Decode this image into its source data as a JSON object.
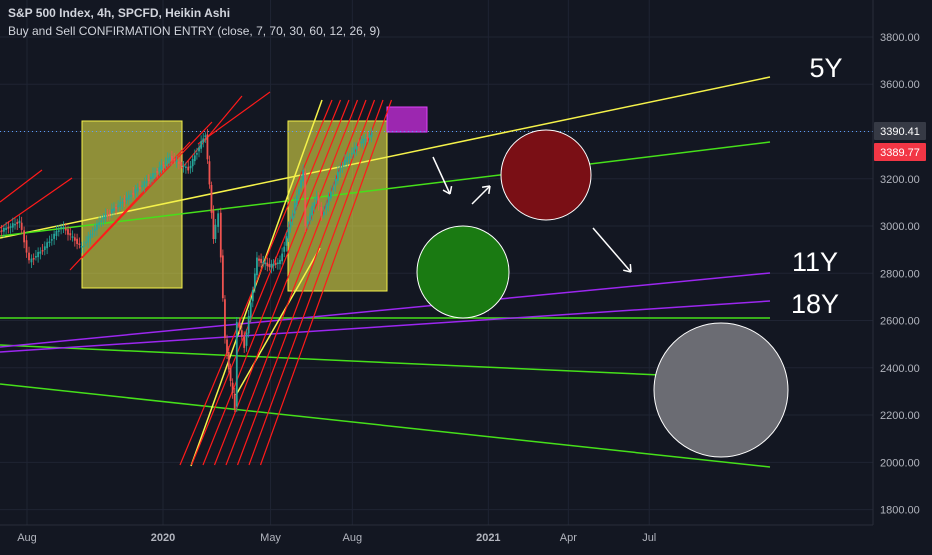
{
  "header": {
    "title": "S&P 500 Index, 4h, SPCFD, Heikin Ashi",
    "indicator": "Buy and Sell CONFIRMATION ENTRY (close, 7, 70, 30, 60, 12, 26, 9)"
  },
  "colors": {
    "background": "#131722",
    "grid": "#1f2433",
    "axis_text": "#b2b5be",
    "trend_yellow": "#f5f24a",
    "trend_green": "#46e01a",
    "trend_purple": "#9c27f0",
    "channel_red": "#ff1a1a",
    "up_candle": "#26a69a",
    "down_candle": "#ef5350",
    "current_price_tag": "#363a45",
    "last_price_tag": "#f23645"
  },
  "chart_data": {
    "type": "candlestick",
    "y_ticks": [
      1800,
      2000,
      2200,
      2400,
      2600,
      2800,
      3000,
      3200,
      3400,
      3600,
      3800
    ],
    "y_tick_labels": [
      "1800.00",
      "2000.00",
      "2200.00",
      "2400.00",
      "2600.00",
      "2800.00",
      "3000.00",
      "3200.00",
      "3400.00",
      "3600.00",
      "3800.00"
    ],
    "x_ticks": [
      {
        "label": "Aug",
        "date": "2019-08-01"
      },
      {
        "label": "2020",
        "date": "2020-01-01"
      },
      {
        "label": "May",
        "date": "2020-05-01"
      },
      {
        "label": "Aug",
        "date": "2020-08-01"
      },
      {
        "label": "2021",
        "date": "2021-01-01"
      },
      {
        "label": "Apr",
        "date": "2021-04-01"
      },
      {
        "label": "Jul",
        "date": "2021-07-01"
      }
    ],
    "price_tags": [
      {
        "label": "3390.41",
        "value": 3390.41,
        "kind": "current"
      },
      {
        "label": "3389.77",
        "value": 3389.77,
        "kind": "last"
      }
    ],
    "price_path": [
      [
        "2019-06-15",
        2950
      ],
      [
        "2019-07-10",
        2990
      ],
      [
        "2019-07-25",
        3020
      ],
      [
        "2019-08-05",
        2850
      ],
      [
        "2019-08-20",
        2900
      ],
      [
        "2019-09-10",
        3000
      ],
      [
        "2019-10-03",
        2910
      ],
      [
        "2019-10-25",
        3030
      ],
      [
        "2019-11-20",
        3110
      ],
      [
        "2019-12-15",
        3190
      ],
      [
        "2020-01-10",
        3290
      ],
      [
        "2020-01-31",
        3240
      ],
      [
        "2020-02-19",
        3390
      ],
      [
        "2020-02-28",
        2950
      ],
      [
        "2020-03-05",
        3050
      ],
      [
        "2020-03-12",
        2520
      ],
      [
        "2020-03-16",
        2400
      ],
      [
        "2020-03-23",
        2230
      ],
      [
        "2020-03-26",
        2600
      ],
      [
        "2020-04-03",
        2490
      ],
      [
        "2020-04-17",
        2860
      ],
      [
        "2020-05-01",
        2830
      ],
      [
        "2020-05-13",
        2850
      ],
      [
        "2020-06-08",
        3230
      ],
      [
        "2020-06-11",
        3000
      ],
      [
        "2020-06-23",
        3130
      ],
      [
        "2020-06-29",
        3040
      ],
      [
        "2020-07-20",
        3250
      ],
      [
        "2020-08-10",
        3350
      ],
      [
        "2020-08-24",
        3390
      ]
    ],
    "annotations": {
      "timeframe_labels": [
        "5Y",
        "11Y",
        "18Y"
      ]
    }
  }
}
